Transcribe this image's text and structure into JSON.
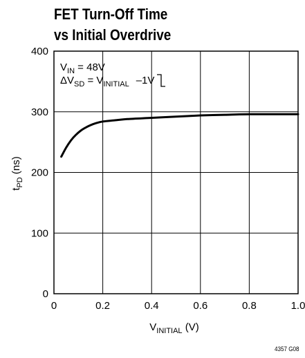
{
  "chart_data": {
    "type": "line",
    "title_line1": "FET Turn-Off Time",
    "title_line2": "vs Initial Overdrive",
    "xlabel_main": "V",
    "xlabel_sub": "INITIAL",
    "xlabel_unit": " (V)",
    "ylabel_main": "t",
    "ylabel_sub": "PD",
    "ylabel_unit": " (ns)",
    "xlim": [
      0,
      1.0
    ],
    "ylim": [
      0,
      400
    ],
    "x_ticks": [
      "0",
      "0.2",
      "0.4",
      "0.6",
      "0.8",
      "1.0"
    ],
    "x_tick_values": [
      0,
      0.2,
      0.4,
      0.6,
      0.8,
      1.0
    ],
    "y_ticks": [
      "0",
      "100",
      "200",
      "300",
      "400"
    ],
    "y_tick_values": [
      0,
      100,
      200,
      300,
      400
    ],
    "grid": true,
    "series": [
      {
        "color": "#000000",
        "x": [
          0.03,
          0.05,
          0.07,
          0.09,
          0.11,
          0.13,
          0.15,
          0.17,
          0.2,
          0.25,
          0.3,
          0.4,
          0.5,
          0.6,
          0.7,
          0.8,
          0.9,
          1.0
        ],
        "y": [
          226,
          241,
          253,
          262,
          269,
          274,
          278,
          281,
          284,
          286,
          288,
          290,
          292,
          294,
          295,
          296,
          296,
          296
        ]
      }
    ],
    "annotation_line1": {
      "main": "V",
      "sub": "IN",
      "rest": " = 48V"
    },
    "annotation_line2": {
      "main": "ΔV",
      "sub": "SD",
      "mid": " = V",
      "sub2": "INITIAL",
      "rest": "–1V"
    },
    "figure_id": "4357 G08"
  }
}
